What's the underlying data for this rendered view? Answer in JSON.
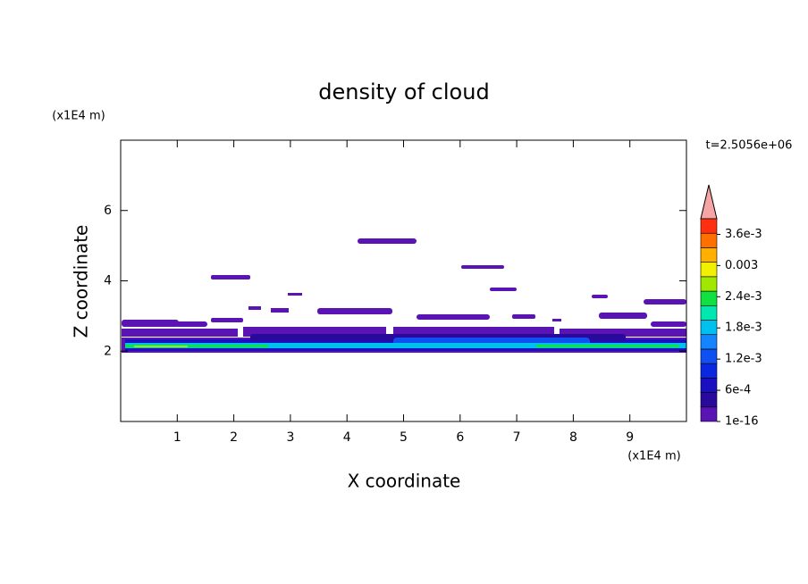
{
  "chart_data": {
    "type": "contour",
    "title": "density of cloud",
    "x_label": "X coordinate",
    "y_label": "Z coordinate",
    "x_unit": "(x1E4 m)",
    "y_unit": "(x1E4 m)",
    "time_label": "t=2.5056e+06",
    "xlim": [
      0,
      10
    ],
    "ylim": [
      0,
      8
    ],
    "xticks": [
      1,
      2,
      3,
      4,
      5,
      6,
      7,
      8,
      9
    ],
    "yticks": [
      2,
      4,
      6
    ],
    "colorbar": {
      "lim": [
        0,
        0.0039
      ],
      "ticks": [
        1e-16,
        {
          "value": 0.0006,
          "label": "6e-4"
        },
        {
          "value": 0.0012,
          "label": "1.2e-3"
        },
        {
          "value": 0.0018,
          "label": "1.8e-3"
        },
        {
          "value": 0.0024,
          "label": "2.4e-3"
        },
        0.003,
        {
          "value": 0.0036,
          "label": "3.6e-3"
        }
      ],
      "colors": [
        "#5a14b4",
        "#2a0a9c",
        "#1a10c0",
        "#0a28e0",
        "#1050f0",
        "#1484ff",
        "#00c0f0",
        "#00e8b0",
        "#10e040",
        "#a0e800",
        "#f0f000",
        "#ffb000",
        "#ff7000",
        "#ff3010"
      ],
      "extend_color": "#f5a5a5"
    }
  }
}
